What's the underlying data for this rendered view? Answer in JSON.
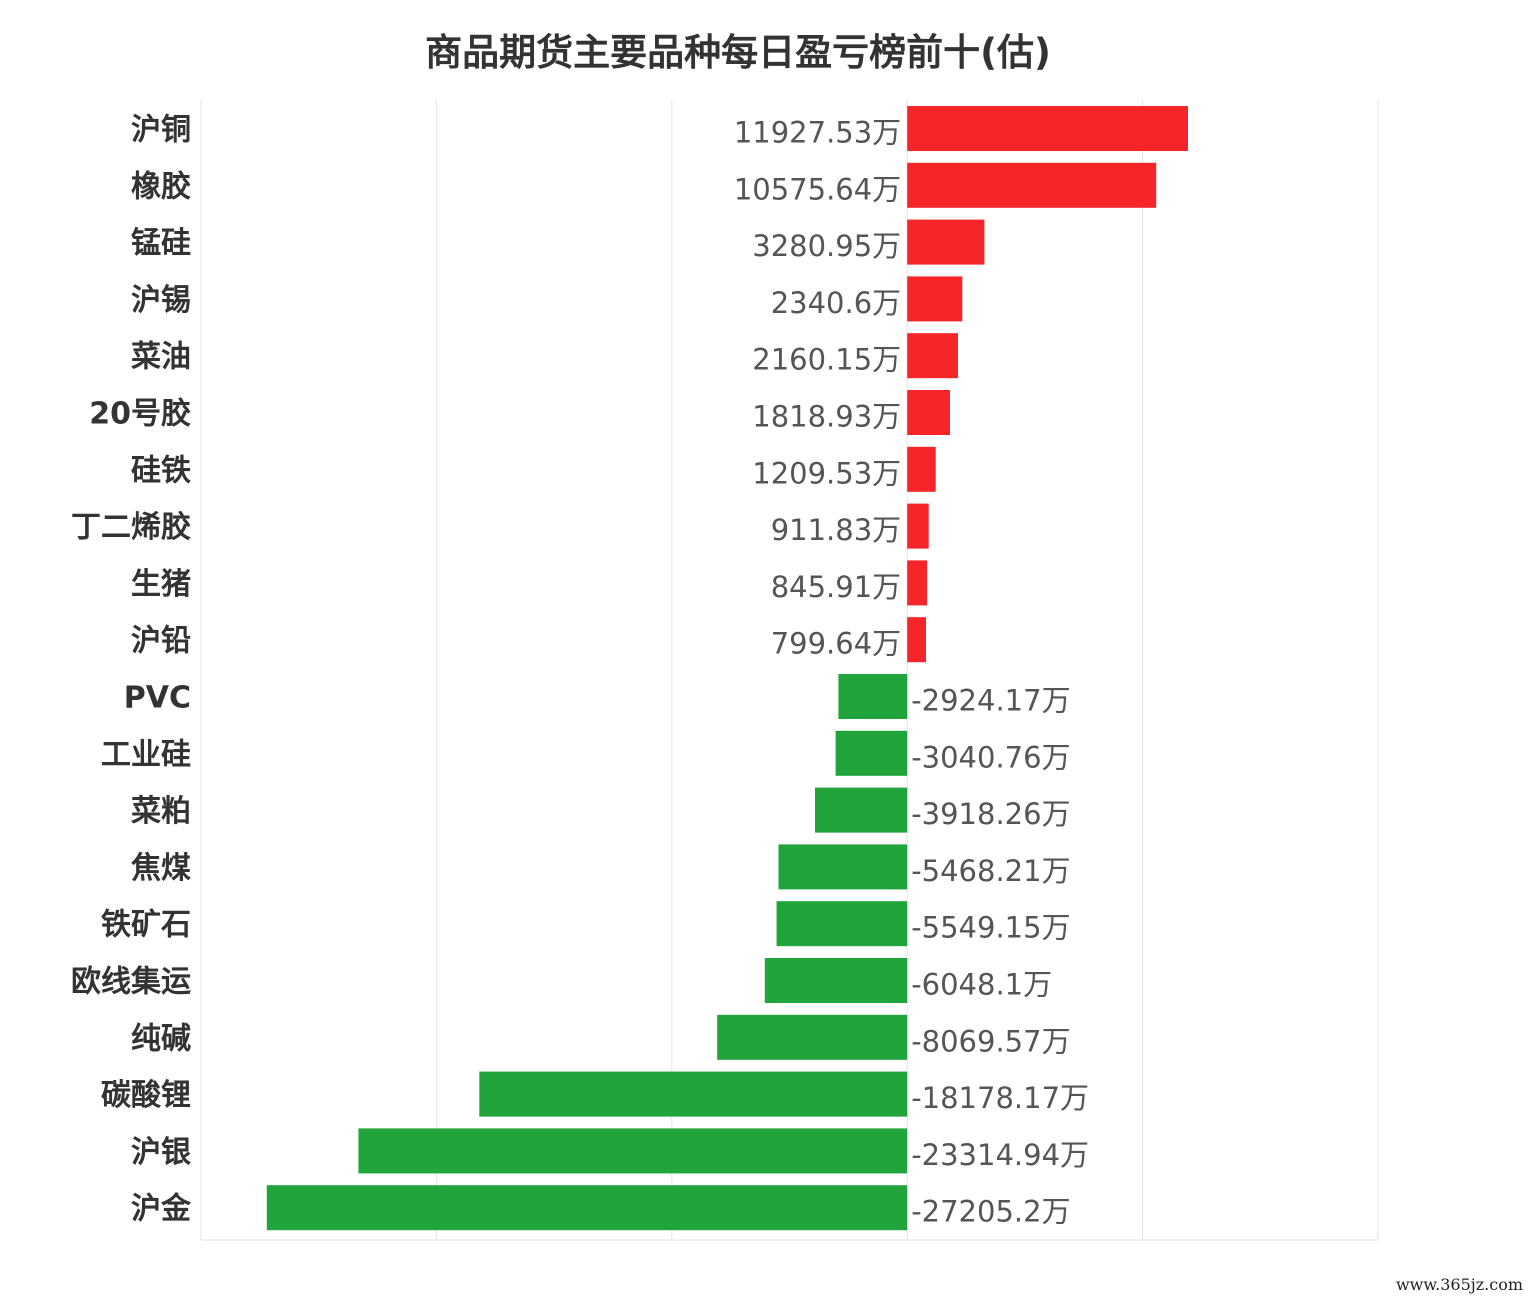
{
  "chart_data": {
    "type": "bar",
    "orientation": "horizontal",
    "title": "商品期货主要品种每日盈亏榜前十(估)",
    "unit": "万",
    "categories": [
      "沪铜",
      "橡胶",
      "锰硅",
      "沪锡",
      "菜油",
      "20号胶",
      "硅铁",
      "丁二烯胶",
      "生猪",
      "沪铅",
      "PVC",
      "工业硅",
      "菜粕",
      "焦煤",
      "铁矿石",
      "欧线集运",
      "纯碱",
      "碳酸锂",
      "沪银",
      "沪金"
    ],
    "values": [
      11927.53,
      10575.64,
      3280.95,
      2340.6,
      2160.15,
      1818.93,
      1209.53,
      911.83,
      845.91,
      799.64,
      -2924.17,
      -3040.76,
      -3918.26,
      -5468.21,
      -5549.15,
      -6048.1,
      -8069.57,
      -18178.17,
      -23314.94,
      -27205.2
    ],
    "value_labels": [
      "11927.53万",
      "10575.64万",
      "3280.95万",
      "2340.6万",
      "2160.15万",
      "1818.93万",
      "1209.53万",
      "911.83万",
      "845.91万",
      "799.64万",
      "-2924.17万",
      "-3040.76万",
      "-3918.26万",
      "-5468.21万",
      "-5549.15万",
      "-6048.1万",
      "-8069.57万",
      "-18178.17万",
      "-23314.94万",
      "-27205.2万"
    ],
    "xlim": [
      -30000,
      20000
    ],
    "gridlines": [
      -30000,
      -20000,
      -10000,
      0,
      10000,
      20000
    ],
    "grid": true,
    "positive_color": "#f52529",
    "negative_color": "#20a43b"
  },
  "watermark": "www.365jz.com"
}
